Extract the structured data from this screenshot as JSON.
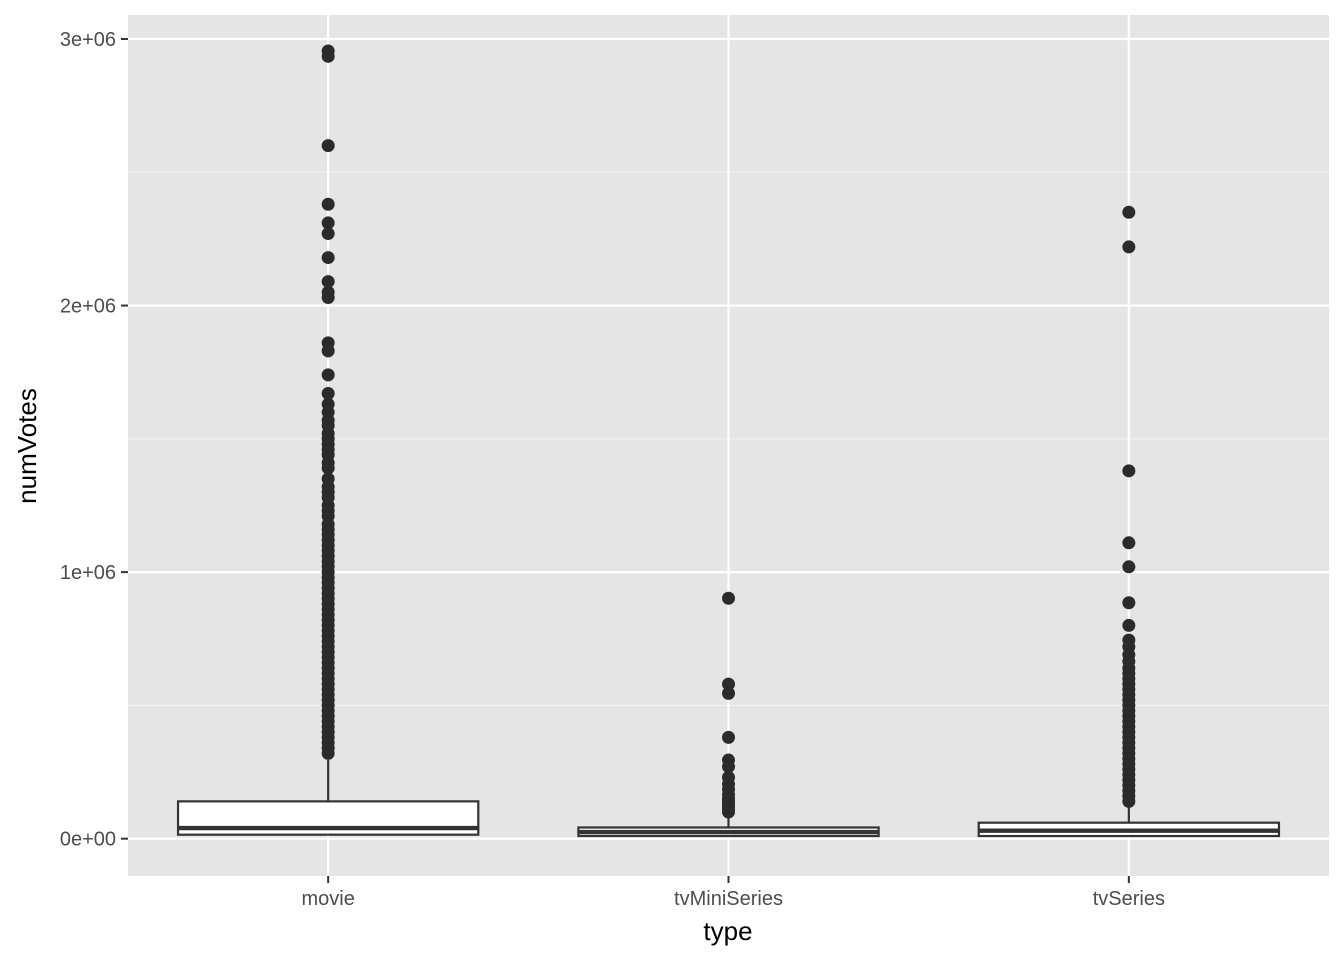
{
  "chart_data": {
    "type": "boxplot",
    "xlabel": "type",
    "ylabel": "numVotes",
    "ylim": [
      -140000,
      3090000
    ],
    "y_ticks": [
      {
        "value": 0,
        "label": "0e+00"
      },
      {
        "value": 1000000,
        "label": "1e+06"
      },
      {
        "value": 2000000,
        "label": "2e+06"
      },
      {
        "value": 3000000,
        "label": "3e+06"
      }
    ],
    "y_minor_ticks": [
      500000,
      1500000,
      2500000
    ],
    "grid": true,
    "panel_color": "#e5e5e5",
    "box_fill": "#ffffff",
    "box_stroke": "#333333",
    "point_color": "#2b2b2b",
    "categories": [
      "movie",
      "tvMiniSeries",
      "tvSeries"
    ],
    "boxes": [
      {
        "category": "movie",
        "min": 15000,
        "q1": 15000,
        "median": 40000,
        "q3": 140000,
        "whisker_high": 295000,
        "outliers": [
          2955000,
          2935000,
          2600000,
          2380000,
          2310000,
          2270000,
          2180000,
          2090000,
          2050000,
          2030000,
          1860000,
          1830000,
          1740000,
          1670000,
          1630000,
          1600000,
          1570000,
          1550000,
          1520000,
          1500000,
          1480000,
          1460000,
          1440000,
          1410000,
          1390000,
          1350000,
          1320000,
          1300000,
          1280000,
          1250000,
          1230000,
          1210000,
          1180000,
          1160000,
          1140000,
          1120000,
          1100000,
          1080000,
          1060000,
          1040000,
          1020000,
          1000000,
          980000,
          960000,
          940000,
          920000,
          900000,
          880000,
          860000,
          840000,
          820000,
          800000,
          780000,
          760000,
          740000,
          720000,
          700000,
          680000,
          660000,
          640000,
          620000,
          600000,
          580000,
          560000,
          540000,
          520000,
          500000,
          480000,
          460000,
          440000,
          420000,
          400000,
          380000,
          360000,
          340000,
          320000
        ]
      },
      {
        "category": "tvMiniSeries",
        "min": 10000,
        "q1": 10000,
        "median": 25000,
        "q3": 42000,
        "whisker_high": 85000,
        "outliers": [
          902000,
          580000,
          545000,
          380000,
          295000,
          270000,
          230000,
          205000,
          185000,
          165000,
          150000,
          140000,
          130000,
          120000,
          110000,
          100000
        ]
      },
      {
        "category": "tvSeries",
        "min": 10000,
        "q1": 10000,
        "median": 30000,
        "q3": 60000,
        "whisker_high": 120000,
        "outliers": [
          2350000,
          2220000,
          1380000,
          1110000,
          1020000,
          885000,
          800000,
          745000,
          720000,
          690000,
          665000,
          640000,
          620000,
          600000,
          580000,
          560000,
          540000,
          520000,
          500000,
          480000,
          460000,
          440000,
          420000,
          400000,
          380000,
          360000,
          340000,
          320000,
          300000,
          280000,
          260000,
          240000,
          220000,
          200000,
          180000,
          160000,
          140000
        ]
      }
    ]
  }
}
